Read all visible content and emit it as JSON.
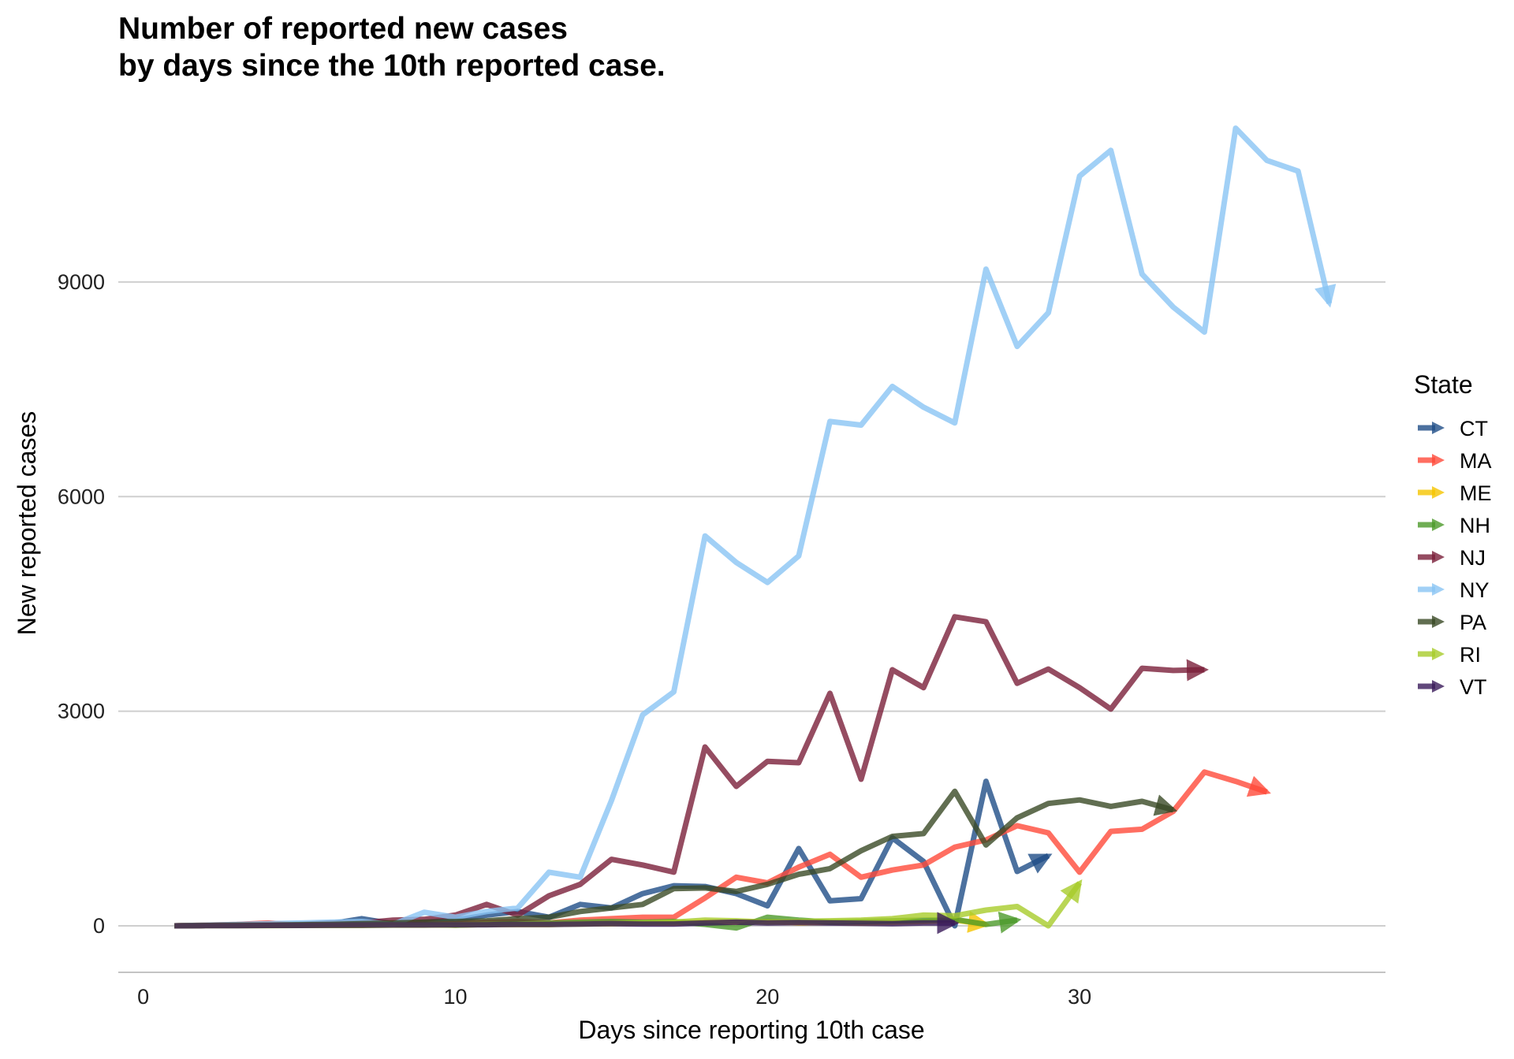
{
  "chart_data": {
    "type": "line",
    "title_line1": "Number of reported new cases",
    "title_line2": "by days since the 10th reported case.",
    "xlabel": "Days since reporting 10th case",
    "ylabel": "New reported cases",
    "xlim": [
      -0.8,
      39.8
    ],
    "ylim": [
      -650,
      11400
    ],
    "x_ticks": [
      0,
      10,
      20,
      30
    ],
    "y_ticks": [
      0,
      3000,
      6000,
      9000
    ],
    "grid": "horizontal",
    "legend_title": "State",
    "legend_position": "right",
    "series": [
      {
        "name": "CT",
        "color": "#1F4E87",
        "x": [
          1,
          2,
          3,
          4,
          5,
          6,
          7,
          8,
          9,
          10,
          11,
          12,
          13,
          14,
          15,
          16,
          17,
          18,
          19,
          20,
          21,
          22,
          23,
          24,
          25,
          26,
          27,
          28,
          29
        ],
        "values": [
          0,
          5,
          10,
          15,
          20,
          30,
          100,
          30,
          50,
          80,
          150,
          200,
          120,
          300,
          250,
          450,
          560,
          550,
          450,
          280,
          1080,
          350,
          380,
          1230,
          900,
          0,
          2020,
          760,
          980
        ]
      },
      {
        "name": "MA",
        "color": "#FF4A3A",
        "x": [
          1,
          2,
          3,
          4,
          5,
          6,
          7,
          8,
          9,
          10,
          11,
          12,
          13,
          14,
          15,
          16,
          17,
          18,
          19,
          20,
          21,
          22,
          23,
          24,
          25,
          26,
          27,
          28,
          29,
          30,
          31,
          32,
          33,
          34,
          35,
          36
        ],
        "values": [
          0,
          10,
          20,
          40,
          10,
          20,
          30,
          40,
          20,
          30,
          50,
          60,
          40,
          80,
          100,
          120,
          120,
          390,
          680,
          600,
          820,
          1000,
          680,
          780,
          850,
          1100,
          1200,
          1400,
          1300,
          750,
          1320,
          1350,
          1600,
          2150,
          2020,
          1870
        ]
      },
      {
        "name": "ME",
        "color": "#F5C400",
        "x": [
          1,
          2,
          3,
          4,
          5,
          6,
          7,
          8,
          9,
          10,
          11,
          12,
          13,
          14,
          15,
          16,
          17,
          18,
          19,
          20,
          21,
          22,
          23,
          24,
          25,
          26,
          27
        ],
        "values": [
          0,
          5,
          5,
          5,
          5,
          10,
          10,
          15,
          15,
          10,
          20,
          20,
          20,
          30,
          30,
          40,
          40,
          50,
          50,
          60,
          40,
          50,
          40,
          50,
          60,
          80,
          20
        ]
      },
      {
        "name": "NH",
        "color": "#4C9A2A",
        "x": [
          1,
          2,
          3,
          4,
          5,
          6,
          7,
          8,
          9,
          10,
          11,
          12,
          13,
          14,
          15,
          16,
          17,
          18,
          19,
          20,
          21,
          22,
          23,
          24,
          25,
          26,
          27,
          28
        ],
        "values": [
          0,
          5,
          5,
          5,
          10,
          10,
          10,
          20,
          20,
          10,
          20,
          30,
          40,
          50,
          60,
          50,
          60,
          20,
          -30,
          120,
          80,
          50,
          60,
          70,
          80,
          90,
          20,
          80
        ]
      },
      {
        "name": "NJ",
        "color": "#7A1F3A",
        "x": [
          1,
          2,
          3,
          4,
          5,
          6,
          7,
          8,
          9,
          10,
          11,
          12,
          13,
          14,
          15,
          16,
          17,
          18,
          19,
          20,
          21,
          22,
          23,
          24,
          25,
          26,
          27,
          28,
          29,
          30,
          31,
          32,
          33,
          34
        ],
        "values": [
          0,
          5,
          10,
          10,
          20,
          40,
          40,
          80,
          90,
          150,
          300,
          150,
          420,
          580,
          930,
          850,
          750,
          2500,
          1950,
          2300,
          2280,
          3250,
          2050,
          3580,
          3330,
          4320,
          4250,
          3390,
          3590,
          3330,
          3030,
          3600,
          3570,
          3580
        ]
      },
      {
        "name": "NY",
        "color": "#89C4F4",
        "x": [
          1,
          2,
          3,
          4,
          5,
          6,
          7,
          8,
          9,
          10,
          11,
          12,
          13,
          14,
          15,
          16,
          17,
          18,
          19,
          20,
          21,
          22,
          23,
          24,
          25,
          26,
          27,
          28,
          29,
          30,
          31,
          32,
          33,
          34,
          35,
          36,
          37,
          38
        ],
        "values": [
          0,
          10,
          20,
          30,
          40,
          50,
          60,
          20,
          190,
          120,
          200,
          250,
          750,
          680,
          1750,
          2950,
          3270,
          5450,
          5080,
          4800,
          5170,
          7050,
          7000,
          7540,
          7250,
          7030,
          9180,
          8100,
          8570,
          10480,
          10840,
          9110,
          8650,
          8300,
          11150,
          10700,
          10550,
          8700
        ]
      },
      {
        "name": "PA",
        "color": "#3A4A25",
        "x": [
          1,
          2,
          3,
          4,
          5,
          6,
          7,
          8,
          9,
          10,
          11,
          12,
          13,
          14,
          15,
          16,
          17,
          18,
          19,
          20,
          21,
          22,
          23,
          24,
          25,
          26,
          27,
          28,
          29,
          30,
          31,
          32,
          33
        ],
        "values": [
          0,
          5,
          10,
          10,
          15,
          20,
          30,
          40,
          50,
          60,
          70,
          100,
          120,
          200,
          250,
          300,
          520,
          530,
          480,
          580,
          720,
          800,
          1050,
          1250,
          1290,
          1880,
          1130,
          1510,
          1710,
          1760,
          1670,
          1740,
          1620
        ]
      },
      {
        "name": "RI",
        "color": "#A8CC2A",
        "x": [
          1,
          2,
          3,
          4,
          5,
          6,
          7,
          8,
          9,
          10,
          11,
          12,
          13,
          14,
          15,
          16,
          17,
          18,
          19,
          20,
          21,
          22,
          23,
          24,
          25,
          26,
          27,
          28,
          29,
          30
        ],
        "values": [
          0,
          2,
          2,
          3,
          5,
          5,
          5,
          10,
          10,
          15,
          20,
          20,
          20,
          25,
          30,
          40,
          50,
          80,
          70,
          50,
          60,
          70,
          80,
          100,
          150,
          140,
          220,
          270,
          0,
          600
        ]
      },
      {
        "name": "VT",
        "color": "#3A1A5A",
        "x": [
          1,
          2,
          3,
          4,
          5,
          6,
          7,
          8,
          9,
          10,
          11,
          12,
          13,
          14,
          15,
          16,
          17,
          18,
          19,
          20,
          21,
          22,
          23,
          24,
          25,
          26
        ],
        "values": [
          0,
          2,
          3,
          5,
          5,
          8,
          10,
          12,
          12,
          15,
          15,
          20,
          20,
          25,
          30,
          25,
          25,
          40,
          50,
          40,
          45,
          40,
          35,
          30,
          40,
          40
        ]
      }
    ]
  }
}
